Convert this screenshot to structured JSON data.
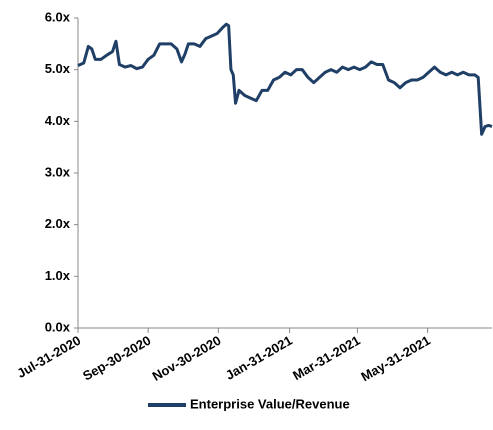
{
  "chart_data": {
    "type": "line",
    "x": [
      "2020-07-31",
      "2020-08-05",
      "2020-08-09",
      "2020-08-12",
      "2020-08-15",
      "2020-08-20",
      "2020-08-25",
      "2020-08-30",
      "2020-09-02",
      "2020-09-05",
      "2020-09-10",
      "2020-09-15",
      "2020-09-20",
      "2020-09-25",
      "2020-09-30",
      "2020-10-05",
      "2020-10-10",
      "2020-10-15",
      "2020-10-20",
      "2020-10-25",
      "2020-10-29",
      "2020-11-01",
      "2020-11-04",
      "2020-11-09",
      "2020-11-14",
      "2020-11-19",
      "2020-11-24",
      "2020-11-29",
      "2020-12-04",
      "2020-12-07",
      "2020-12-09",
      "2020-12-11",
      "2020-12-13",
      "2020-12-15",
      "2020-12-18",
      "2020-12-23",
      "2020-12-28",
      "2021-01-02",
      "2021-01-07",
      "2021-01-12",
      "2021-01-17",
      "2021-01-22",
      "2021-01-27",
      "2021-02-01",
      "2021-02-06",
      "2021-02-11",
      "2021-02-16",
      "2021-02-21",
      "2021-02-26",
      "2021-03-03",
      "2021-03-08",
      "2021-03-13",
      "2021-03-18",
      "2021-03-23",
      "2021-03-28",
      "2021-04-02",
      "2021-04-07",
      "2021-04-12",
      "2021-04-17",
      "2021-04-22",
      "2021-04-27",
      "2021-05-02",
      "2021-05-07",
      "2021-05-12",
      "2021-05-17",
      "2021-05-22",
      "2021-05-27",
      "2021-06-01",
      "2021-06-06",
      "2021-06-11",
      "2021-06-16",
      "2021-06-21",
      "2021-06-26",
      "2021-07-01",
      "2021-07-06",
      "2021-07-11",
      "2021-07-14",
      "2021-07-17",
      "2021-07-20",
      "2021-07-23",
      "2021-07-26"
    ],
    "series": [
      {
        "name": "Enterprise Value/Revenue",
        "color": "#1f3f66",
        "values": [
          5.08,
          5.13,
          5.45,
          5.4,
          5.2,
          5.2,
          5.28,
          5.35,
          5.55,
          5.1,
          5.05,
          5.08,
          5.02,
          5.05,
          5.2,
          5.28,
          5.5,
          5.5,
          5.5,
          5.4,
          5.15,
          5.3,
          5.5,
          5.5,
          5.45,
          5.6,
          5.65,
          5.7,
          5.82,
          5.88,
          5.85,
          5.0,
          4.9,
          4.35,
          4.6,
          4.5,
          4.45,
          4.4,
          4.6,
          4.6,
          4.8,
          4.85,
          4.95,
          4.9,
          5.0,
          5.0,
          4.85,
          4.75,
          4.85,
          4.95,
          5.0,
          4.95,
          5.05,
          5.0,
          5.05,
          5.0,
          5.05,
          5.15,
          5.1,
          5.1,
          4.8,
          4.75,
          4.65,
          4.75,
          4.8,
          4.8,
          4.85,
          4.95,
          5.05,
          4.95,
          4.9,
          4.95,
          4.9,
          4.95,
          4.9,
          4.9,
          4.85,
          3.75,
          3.9,
          3.92,
          3.9
        ]
      }
    ],
    "xlim": [
      "2020-07-31",
      "2021-07-26"
    ],
    "xticks": [
      {
        "value": "2020-07-31",
        "label": "Jul-31-2020"
      },
      {
        "value": "2020-09-30",
        "label": "Sep-30-2020"
      },
      {
        "value": "2020-11-30",
        "label": "Nov-30-2020"
      },
      {
        "value": "2021-01-31",
        "label": "Jan-31-2021"
      },
      {
        "value": "2021-03-31",
        "label": "Mar-31-2021"
      },
      {
        "value": "2021-05-31",
        "label": "May-31-2021"
      }
    ],
    "ylim": [
      0,
      6
    ],
    "yticks": [
      {
        "value": 0,
        "label": "0.0x"
      },
      {
        "value": 1,
        "label": "1.0x"
      },
      {
        "value": 2,
        "label": "2.0x"
      },
      {
        "value": 3,
        "label": "3.0x"
      },
      {
        "value": 4,
        "label": "4.0x"
      },
      {
        "value": 5,
        "label": "5.0x"
      },
      {
        "value": 6,
        "label": "6.0x"
      }
    ],
    "grid": false,
    "legend": "bottom"
  }
}
